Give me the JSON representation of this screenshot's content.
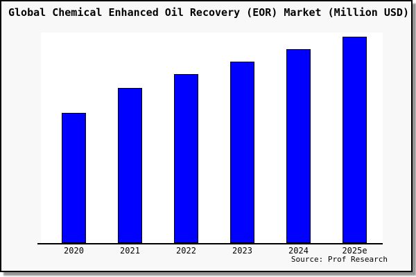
{
  "window": {
    "title": "Global Chemical Enhanced Oil Recovery (EOR) Market (Million USD)"
  },
  "source_note": "Source: Prof Research",
  "colors": {
    "bar_fill": "#0000ff",
    "bar_border": "#000000",
    "plot_bg": "#ffffff",
    "card_bg": "#f8f8f8",
    "axis": "#000000",
    "text": "#000000"
  },
  "chart_data": {
    "type": "bar",
    "title": "Global Chemical Enhanced Oil Recovery (EOR) Market (Million USD)",
    "categories": [
      "2020",
      "2021",
      "2022",
      "2023",
      "2024",
      "2025e"
    ],
    "values": [
      63,
      75,
      82,
      88,
      94,
      100
    ],
    "xlabel": "",
    "ylabel": "",
    "ylim": [
      0,
      102
    ],
    "grid": false,
    "y_axis_visible": false,
    "legend": false,
    "bar_color": "#0000ff",
    "source": "Source: Prof Research"
  }
}
